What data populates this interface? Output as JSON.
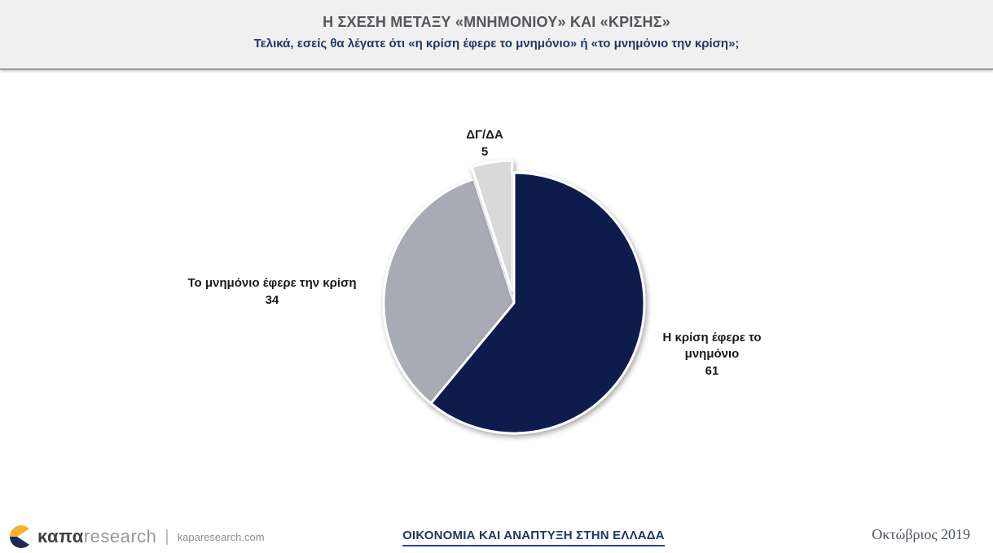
{
  "header": {
    "title": "Η ΣΧΕΣΗ ΜΕΤΑΞΥ «ΜΝΗΜΟΝΙΟΥ» ΚΑΙ «ΚΡΙΣΗΣ»",
    "subtitle": "Τελικά, εσείς θα λέγατε ότι «η κρίση έφερε το μνημόνιο» ή «το μνημόνιο την κρίση»;"
  },
  "chart_data": {
    "type": "pie",
    "title": "Η ΣΧΕΣΗ ΜΕΤΑΞΥ «ΜΝΗΜΟΝΙΟΥ» ΚΑΙ «ΚΡΙΣΗΣ»",
    "start_angle_deg": 0,
    "direction": "clockwise",
    "total": 100,
    "legend_position": "none",
    "slices": [
      {
        "label": "Η κρίση έφερε το μνημόνιο",
        "value": 61,
        "color": "#101f4e",
        "exploded": false
      },
      {
        "label": "Το μνημόνιο έφερε την κρίση",
        "value": 34,
        "color": "#a8aab6",
        "exploded": false
      },
      {
        "label": "ΔΓ/ΔΑ",
        "value": 5,
        "color": "#d9d9d9",
        "exploded": true
      }
    ]
  },
  "footer": {
    "logo_bold": "καπα",
    "logo_light": "research",
    "separator": "|",
    "website": "kaparesearch.com",
    "series_title": "ΟΙΚΟΝΟΜΙΑ ΚΑΙ ΑΝΑΠΤΥΞΗ ΣΤΗΝ ΕΛΛΑΔΑ",
    "date": "Οκτώβριος 2019"
  },
  "colors": {
    "header_bg": "#f0f0f1",
    "title_gray": "#54565b",
    "navy": "#1f3864",
    "slice_navy": "#101f4e",
    "slice_gray": "#a8aab6",
    "slice_light": "#d9d9d9",
    "logo_yellow": "#f2b32a",
    "logo_navy": "#1b2a58"
  }
}
